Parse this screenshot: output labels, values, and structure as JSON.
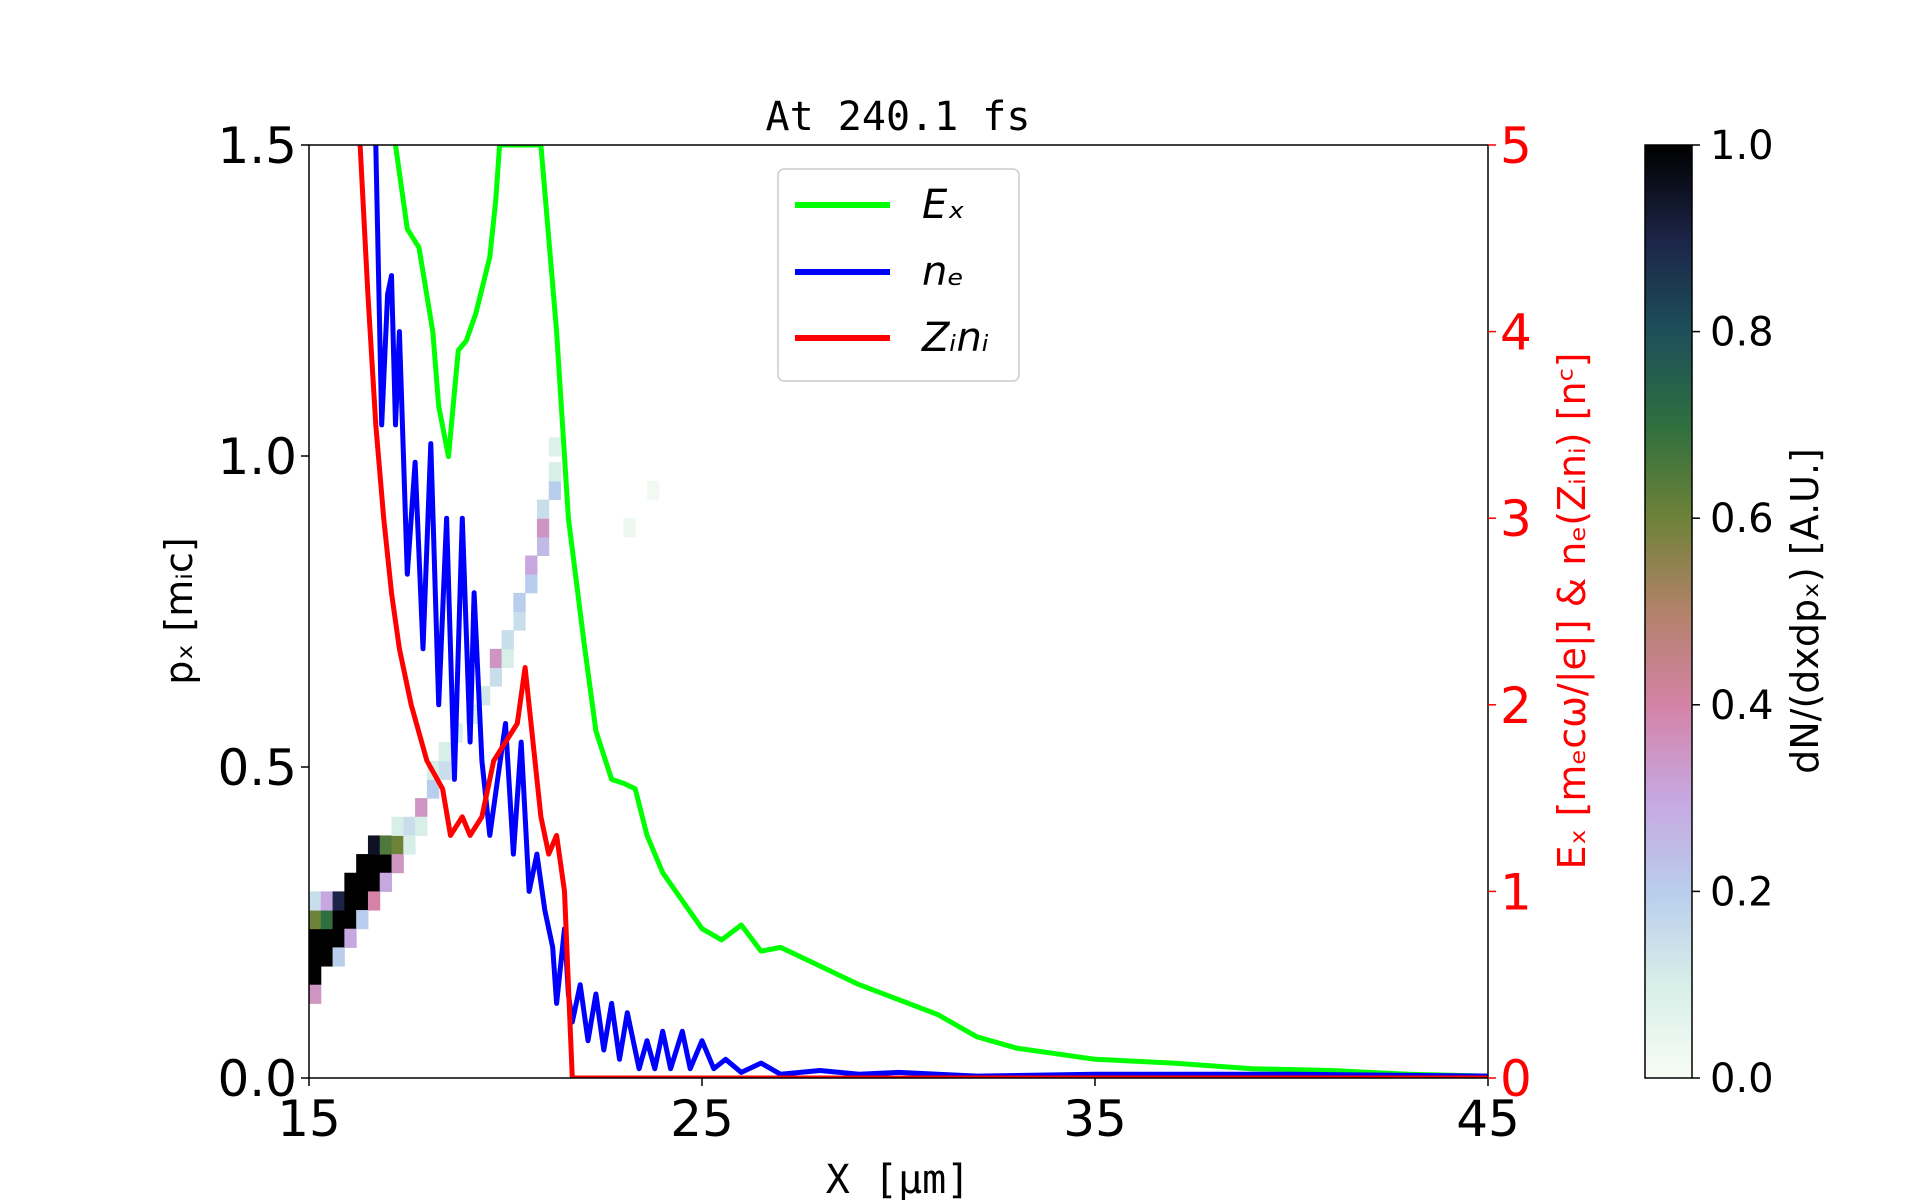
{
  "chart_data": {
    "type": "line",
    "title": "At 240.1 fs",
    "xlabel": "X  [μm]",
    "ylabel": "pₓ  [mᵢc]",
    "y2label": "Eₓ [mₑcω/|e|]  &  nₑ(Zᵢnᵢ)  [nᶜ]",
    "colorbar_label": "dN/(dxdpₓ)  [A.U.]",
    "xlim": [
      15,
      45
    ],
    "ylim": [
      0,
      1.5
    ],
    "y2lim": [
      0,
      5
    ],
    "clim": [
      0,
      1
    ],
    "xticks": [
      "15",
      "25",
      "35",
      "45"
    ],
    "yticks": [
      "0.0",
      "0.5",
      "1.0",
      "1.5"
    ],
    "y2ticks": [
      "0",
      "1",
      "2",
      "3",
      "4",
      "5"
    ],
    "cbticks": [
      "0.0",
      "0.2",
      "0.4",
      "0.6",
      "0.8",
      "1.0"
    ],
    "legend_position": "top-center",
    "colors": {
      "Ex": "#00ff00",
      "ne": "#0000ff",
      "Zini": "#ff0000",
      "right_axis": "#ff0000"
    },
    "series": [
      {
        "key": "Ex",
        "name": "Eₓ",
        "axis": "right",
        "points": [
          [
            17.2,
            5.0
          ],
          [
            17.5,
            4.55
          ],
          [
            17.8,
            4.45
          ],
          [
            18.15,
            4.0
          ],
          [
            18.3,
            3.6
          ],
          [
            18.55,
            3.33
          ],
          [
            18.8,
            3.9
          ],
          [
            19.0,
            3.95
          ],
          [
            19.25,
            4.1
          ],
          [
            19.6,
            4.4
          ],
          [
            19.75,
            4.7
          ],
          [
            19.85,
            5.0
          ],
          [
            20.9,
            5.0
          ],
          [
            21.3,
            4.0
          ],
          [
            21.6,
            3.0
          ],
          [
            22.0,
            2.33
          ],
          [
            22.3,
            1.86
          ],
          [
            22.7,
            1.6
          ],
          [
            23.0,
            1.58
          ],
          [
            23.3,
            1.55
          ],
          [
            23.6,
            1.3
          ],
          [
            24.0,
            1.1
          ],
          [
            24.5,
            0.95
          ],
          [
            25.0,
            0.8
          ],
          [
            25.5,
            0.74
          ],
          [
            26.0,
            0.82
          ],
          [
            26.5,
            0.68
          ],
          [
            27.0,
            0.7
          ],
          [
            28.0,
            0.6
          ],
          [
            29.0,
            0.5
          ],
          [
            30.0,
            0.42
          ],
          [
            31.0,
            0.34
          ],
          [
            32.0,
            0.22
          ],
          [
            33.0,
            0.16
          ],
          [
            34.0,
            0.13
          ],
          [
            35.0,
            0.1
          ],
          [
            37.0,
            0.08
          ],
          [
            39.0,
            0.05
          ],
          [
            41.0,
            0.04
          ],
          [
            43.0,
            0.02
          ],
          [
            45.0,
            0.01
          ]
        ]
      },
      {
        "key": "ne",
        "name": "nₑ",
        "axis": "right",
        "points": [
          [
            16.7,
            5.0
          ],
          [
            16.85,
            3.5
          ],
          [
            17.0,
            4.2
          ],
          [
            17.1,
            4.3
          ],
          [
            17.2,
            3.5
          ],
          [
            17.3,
            4.0
          ],
          [
            17.5,
            2.7
          ],
          [
            17.7,
            3.3
          ],
          [
            17.9,
            2.3
          ],
          [
            18.1,
            3.4
          ],
          [
            18.3,
            2.0
          ],
          [
            18.5,
            3.0
          ],
          [
            18.7,
            1.6
          ],
          [
            18.9,
            3.0
          ],
          [
            19.1,
            1.8
          ],
          [
            19.2,
            2.6
          ],
          [
            19.4,
            1.7
          ],
          [
            19.6,
            1.3
          ],
          [
            19.8,
            1.6
          ],
          [
            20.0,
            1.9
          ],
          [
            20.2,
            1.2
          ],
          [
            20.4,
            1.8
          ],
          [
            20.6,
            1.0
          ],
          [
            20.8,
            1.2
          ],
          [
            21.0,
            0.9
          ],
          [
            21.2,
            0.7
          ],
          [
            21.3,
            0.4
          ],
          [
            21.5,
            0.8
          ],
          [
            21.6,
            0.45
          ],
          [
            21.7,
            0.3
          ],
          [
            21.9,
            0.5
          ],
          [
            22.1,
            0.2
          ],
          [
            22.3,
            0.45
          ],
          [
            22.5,
            0.15
          ],
          [
            22.7,
            0.4
          ],
          [
            22.9,
            0.1
          ],
          [
            23.1,
            0.35
          ],
          [
            23.4,
            0.05
          ],
          [
            23.6,
            0.2
          ],
          [
            23.8,
            0.05
          ],
          [
            24.0,
            0.25
          ],
          [
            24.2,
            0.05
          ],
          [
            24.5,
            0.25
          ],
          [
            24.7,
            0.05
          ],
          [
            25.0,
            0.2
          ],
          [
            25.3,
            0.05
          ],
          [
            25.6,
            0.1
          ],
          [
            26.0,
            0.03
          ],
          [
            26.5,
            0.08
          ],
          [
            27.0,
            0.02
          ],
          [
            28.0,
            0.04
          ],
          [
            29.0,
            0.02
          ],
          [
            30.0,
            0.03
          ],
          [
            32.0,
            0.01
          ],
          [
            35.0,
            0.02
          ],
          [
            40.0,
            0.02
          ],
          [
            45.0,
            0.01
          ]
        ]
      },
      {
        "key": "Zini",
        "name": "Zᵢnᵢ",
        "axis": "right",
        "points": [
          [
            16.3,
            5.0
          ],
          [
            16.5,
            4.2
          ],
          [
            16.7,
            3.5
          ],
          [
            16.9,
            3.0
          ],
          [
            17.1,
            2.6
          ],
          [
            17.3,
            2.3
          ],
          [
            17.6,
            2.0
          ],
          [
            18.0,
            1.7
          ],
          [
            18.4,
            1.55
          ],
          [
            18.6,
            1.3
          ],
          [
            18.9,
            1.4
          ],
          [
            19.1,
            1.3
          ],
          [
            19.4,
            1.4
          ],
          [
            19.7,
            1.7
          ],
          [
            20.0,
            1.8
          ],
          [
            20.3,
            1.9
          ],
          [
            20.5,
            2.2
          ],
          [
            20.7,
            1.8
          ],
          [
            20.9,
            1.4
          ],
          [
            21.1,
            1.2
          ],
          [
            21.3,
            1.3
          ],
          [
            21.5,
            1.0
          ],
          [
            21.6,
            0.5
          ],
          [
            21.7,
            0.0
          ],
          [
            45.0,
            0.0
          ]
        ]
      }
    ],
    "heatmap_cells": [
      [
        15.0,
        0.15,
        1.0
      ],
      [
        15.0,
        0.18,
        1.0
      ],
      [
        15.0,
        0.21,
        1.0
      ],
      [
        15.0,
        0.24,
        0.6
      ],
      [
        15.0,
        0.12,
        0.35
      ],
      [
        15.0,
        0.27,
        0.15
      ],
      [
        15.3,
        0.18,
        1.0
      ],
      [
        15.3,
        0.21,
        1.0
      ],
      [
        15.3,
        0.24,
        0.7
      ],
      [
        15.3,
        0.27,
        0.3
      ],
      [
        15.6,
        0.21,
        1.0
      ],
      [
        15.6,
        0.24,
        1.0
      ],
      [
        15.6,
        0.27,
        0.9
      ],
      [
        15.6,
        0.18,
        0.2
      ],
      [
        15.9,
        0.24,
        1.0
      ],
      [
        15.9,
        0.27,
        1.0
      ],
      [
        15.9,
        0.3,
        1.0
      ],
      [
        15.9,
        0.21,
        0.3
      ],
      [
        16.2,
        0.27,
        1.0
      ],
      [
        16.2,
        0.3,
        1.0
      ],
      [
        16.2,
        0.33,
        1.0
      ],
      [
        16.2,
        0.24,
        0.2
      ],
      [
        16.5,
        0.3,
        1.0
      ],
      [
        16.5,
        0.33,
        1.0
      ],
      [
        16.5,
        0.36,
        0.95
      ],
      [
        16.5,
        0.27,
        0.4
      ],
      [
        16.8,
        0.33,
        1.0
      ],
      [
        16.8,
        0.36,
        0.65
      ],
      [
        16.8,
        0.3,
        0.3
      ],
      [
        17.1,
        0.36,
        0.6
      ],
      [
        17.1,
        0.33,
        0.35
      ],
      [
        17.1,
        0.39,
        0.1
      ],
      [
        17.4,
        0.39,
        0.15
      ],
      [
        17.4,
        0.36,
        0.1
      ],
      [
        17.7,
        0.42,
        0.35
      ],
      [
        17.7,
        0.39,
        0.1
      ],
      [
        18.0,
        0.45,
        0.2
      ],
      [
        18.0,
        0.48,
        0.1
      ],
      [
        18.3,
        0.48,
        0.15
      ],
      [
        18.3,
        0.51,
        0.1
      ],
      [
        18.6,
        0.54,
        0.1
      ],
      [
        19.0,
        0.57,
        0.1
      ],
      [
        19.3,
        0.6,
        0.12
      ],
      [
        19.6,
        0.63,
        0.15
      ],
      [
        19.6,
        0.66,
        0.35
      ],
      [
        19.9,
        0.66,
        0.1
      ],
      [
        19.9,
        0.69,
        0.15
      ],
      [
        20.2,
        0.72,
        0.15
      ],
      [
        20.2,
        0.75,
        0.2
      ],
      [
        20.5,
        0.78,
        0.2
      ],
      [
        20.5,
        0.81,
        0.3
      ],
      [
        20.8,
        0.84,
        0.25
      ],
      [
        20.8,
        0.87,
        0.35
      ],
      [
        20.8,
        0.9,
        0.15
      ],
      [
        21.1,
        0.93,
        0.2
      ],
      [
        21.1,
        0.96,
        0.1
      ],
      [
        21.1,
        1.0,
        0.08
      ],
      [
        23.0,
        0.87,
        0.03
      ],
      [
        23.6,
        0.93,
        0.02
      ]
    ]
  }
}
